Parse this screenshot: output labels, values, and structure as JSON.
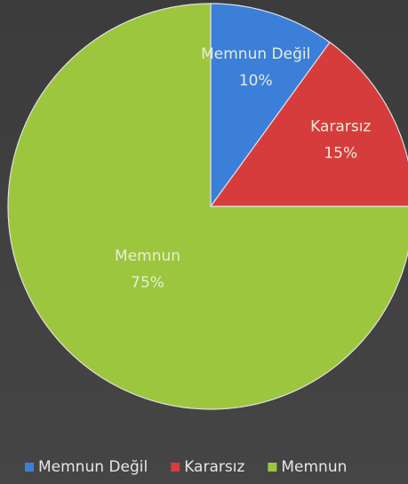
{
  "chart_data": {
    "type": "pie",
    "categories": [
      "Memnun Değil",
      "Kararsız",
      "Memnun"
    ],
    "values": [
      10,
      15,
      75
    ],
    "value_labels": [
      "10%",
      "15%",
      "75%"
    ],
    "colors": [
      "#3b7fd9",
      "#d63c3c",
      "#9cc63e"
    ],
    "legend": "bottom"
  }
}
